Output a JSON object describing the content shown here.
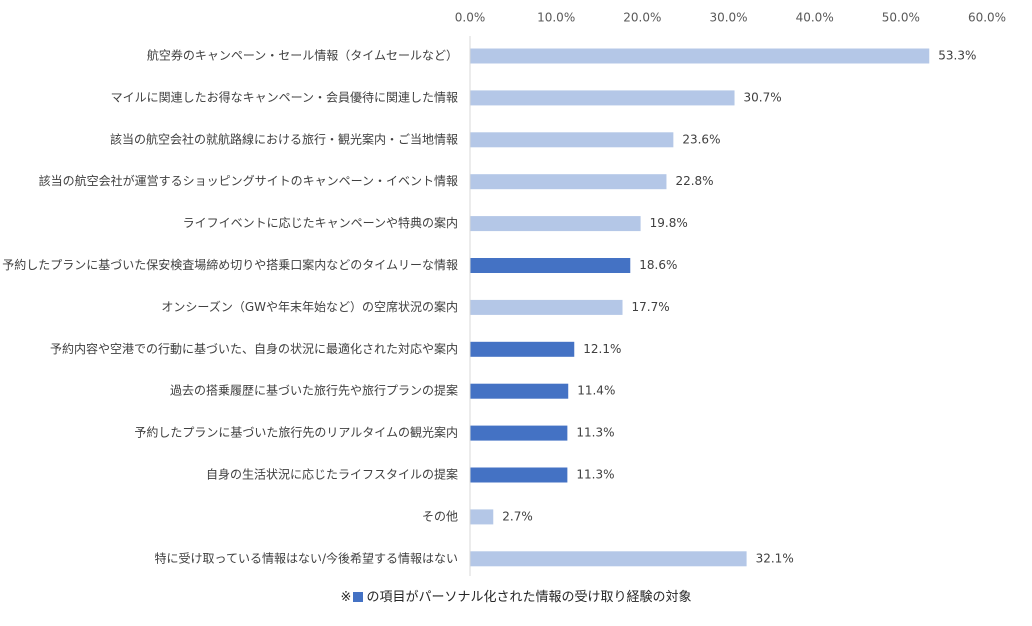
{
  "chart_data": {
    "type": "bar",
    "orientation": "horizontal",
    "categories": [
      "航空券のキャンペーン・セール情報（タイムセールなど）",
      "マイルに関連したお得なキャンペーン・会員優待に関連した情報",
      "該当の航空会社の就航路線における旅行・観光案内・ご当地情報",
      "該当の航空会社が運営するショッピングサイトのキャンペーン・イベント情報",
      "ライフイベントに応じたキャンペーンや特典の案内",
      "予約したプランに基づいた保安検査場締め切りや搭乗口案内などのタイムリーな情報",
      "オンシーズン（GWや年末年始など）の空席状況の案内",
      "予約内容や空港での行動に基づいた、自身の状況に最適化された対応や案内",
      "過去の搭乗履歴に基づいた旅行先や旅行プランの提案",
      "予約したプランに基づいた旅行先のリアルタイムの観光案内",
      "自身の生活状況に応じたライフスタイルの提案",
      "その他",
      "特に受け取っている情報はない/今後希望する情報はない"
    ],
    "values": [
      53.3,
      30.7,
      23.6,
      22.8,
      19.8,
      18.6,
      17.7,
      12.1,
      11.4,
      11.3,
      11.3,
      2.7,
      32.1
    ],
    "value_labels": [
      "53.3%",
      "30.7%",
      "23.6%",
      "22.8%",
      "19.8%",
      "18.6%",
      "17.7%",
      "12.1%",
      "11.4%",
      "11.3%",
      "11.3%",
      "2.7%",
      "32.1%"
    ],
    "highlighted": [
      false,
      false,
      false,
      false,
      false,
      true,
      false,
      true,
      true,
      true,
      true,
      false,
      false
    ],
    "x_ticks": [
      "0.0%",
      "10.0%",
      "20.0%",
      "30.0%",
      "40.0%",
      "50.0%",
      "60.0%"
    ],
    "xlim": [
      0,
      60
    ],
    "axis_position": "top",
    "grid": false,
    "colors": {
      "default": "#b4c7e7",
      "highlight": "#4472c4",
      "axis": "#d9d9d9"
    }
  },
  "footnote": {
    "prefix": "※",
    "marker_color": "#4472c4",
    "text": "の項目がパーソナル化された情報の受け取り経験の対象"
  }
}
